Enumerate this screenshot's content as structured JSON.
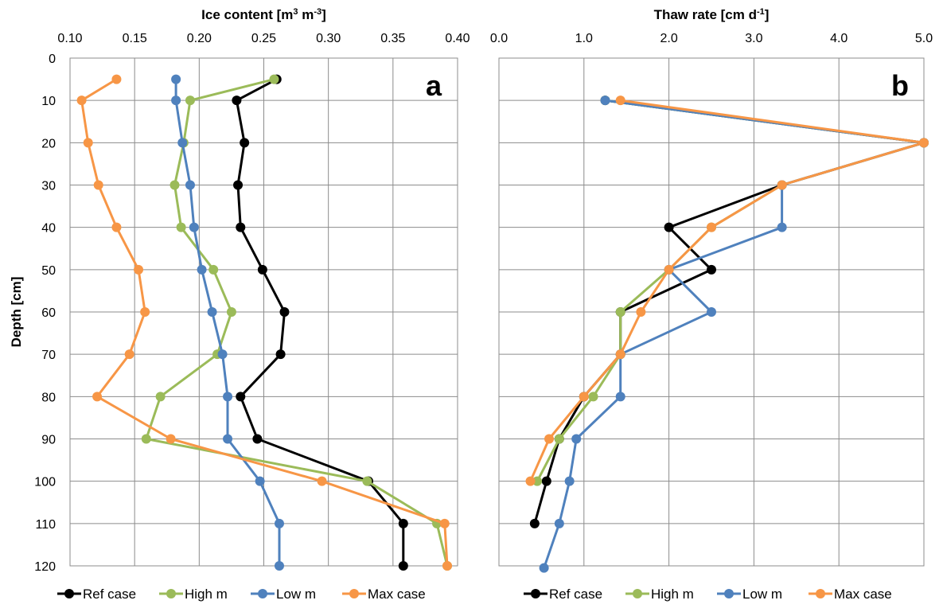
{
  "chart_data": [
    {
      "type": "line",
      "panel_label": "a",
      "xlabel_main": "Ice content [m",
      "xlabel_sup1": "3",
      "xlabel_mid": " m",
      "xlabel_sup2": "-3",
      "xlabel_end": "]",
      "ylabel": "Depth [cm]",
      "xlim": [
        0.1,
        0.4
      ],
      "ylim": [
        0,
        120
      ],
      "x_ticks": [
        "0.10",
        "0.15",
        "0.20",
        "0.25",
        "0.30",
        "0.35",
        "0.40"
      ],
      "x_tick_values": [
        0.1,
        0.15,
        0.2,
        0.25,
        0.3,
        0.35,
        0.4
      ],
      "y_ticks": [
        "0",
        "10",
        "20",
        "30",
        "40",
        "50",
        "60",
        "70",
        "80",
        "90",
        "100",
        "110",
        "120"
      ],
      "y_tick_values": [
        0,
        10,
        20,
        30,
        40,
        50,
        60,
        70,
        80,
        90,
        100,
        110,
        120
      ],
      "y_inverted": true,
      "x_axis_position": "top",
      "grid": true,
      "series": [
        {
          "name": "Ref case",
          "color": "#000000",
          "points": [
            [
              0.26,
              5
            ],
            [
              0.229,
              10
            ],
            [
              0.235,
              20
            ],
            [
              0.23,
              30
            ],
            [
              0.232,
              40
            ],
            [
              0.249,
              50
            ],
            [
              0.266,
              60
            ],
            [
              0.263,
              70
            ],
            [
              0.232,
              80
            ],
            [
              0.245,
              90
            ],
            [
              0.331,
              100
            ],
            [
              0.358,
              110
            ],
            [
              0.358,
              120
            ]
          ]
        },
        {
          "name": "High m",
          "color": "#9bbb59",
          "points": [
            [
              0.258,
              5
            ],
            [
              0.193,
              10
            ],
            [
              0.188,
              20
            ],
            [
              0.181,
              30
            ],
            [
              0.186,
              40
            ],
            [
              0.211,
              50
            ],
            [
              0.225,
              60
            ],
            [
              0.214,
              70
            ],
            [
              0.17,
              80
            ],
            [
              0.159,
              90
            ],
            [
              0.33,
              100
            ],
            [
              0.384,
              110
            ],
            [
              0.392,
              120
            ]
          ]
        },
        {
          "name": "Low m",
          "color": "#4f81bd",
          "points": [
            [
              0.182,
              5
            ],
            [
              0.182,
              10
            ],
            [
              0.187,
              20
            ],
            [
              0.193,
              30
            ],
            [
              0.196,
              40
            ],
            [
              0.202,
              50
            ],
            [
              0.21,
              60
            ],
            [
              0.218,
              70
            ],
            [
              0.222,
              80
            ],
            [
              0.222,
              90
            ],
            [
              0.247,
              100
            ],
            [
              0.262,
              110
            ],
            [
              0.262,
              120
            ]
          ]
        },
        {
          "name": "Max case",
          "color": "#f79646",
          "points": [
            [
              0.136,
              5
            ],
            [
              0.109,
              10
            ],
            [
              0.114,
              20
            ],
            [
              0.122,
              30
            ],
            [
              0.136,
              40
            ],
            [
              0.153,
              50
            ],
            [
              0.158,
              60
            ],
            [
              0.146,
              70
            ],
            [
              0.121,
              80
            ],
            [
              0.178,
              90
            ],
            [
              0.295,
              100
            ],
            [
              0.39,
              110
            ],
            [
              0.392,
              120
            ]
          ]
        }
      ]
    },
    {
      "type": "line",
      "panel_label": "b",
      "xlabel_main": "Thaw rate [cm d",
      "xlabel_sup1": "-1",
      "xlabel_end": "]",
      "xlim": [
        0,
        5
      ],
      "ylim": [
        0,
        120
      ],
      "x_ticks": [
        "0.0",
        "1.0",
        "2.0",
        "3.0",
        "4.0",
        "5.0"
      ],
      "x_tick_values": [
        0,
        1,
        2,
        3,
        4,
        5
      ],
      "y_tick_values": [
        0,
        10,
        20,
        30,
        40,
        50,
        60,
        70,
        80,
        90,
        100,
        110,
        120
      ],
      "y_inverted": true,
      "x_axis_position": "top",
      "grid": true,
      "series": [
        {
          "name": "Ref case",
          "color": "#000000",
          "points": [
            [
              1.25,
              10
            ],
            [
              5.0,
              20
            ],
            [
              3.33,
              30
            ],
            [
              2.0,
              40
            ],
            [
              2.5,
              50
            ],
            [
              1.43,
              60
            ],
            [
              1.43,
              70
            ],
            [
              1.0,
              80
            ],
            [
              0.71,
              90
            ],
            [
              0.56,
              100
            ],
            [
              0.42,
              110
            ]
          ]
        },
        {
          "name": "High m",
          "color": "#9bbb59",
          "points": [
            [
              1.25,
              10
            ],
            [
              5.0,
              20
            ],
            [
              3.33,
              30
            ],
            [
              2.5,
              40
            ],
            [
              2.0,
              50
            ],
            [
              1.43,
              60
            ],
            [
              1.43,
              70
            ],
            [
              1.11,
              80
            ],
            [
              0.71,
              90
            ],
            [
              0.45,
              100
            ]
          ]
        },
        {
          "name": "Low m",
          "color": "#4f81bd",
          "points": [
            [
              1.25,
              10
            ],
            [
              5.0,
              20
            ],
            [
              3.33,
              30
            ],
            [
              3.33,
              40
            ],
            [
              2.0,
              50
            ],
            [
              2.5,
              60
            ],
            [
              1.43,
              70
            ],
            [
              1.43,
              80
            ],
            [
              0.91,
              90
            ],
            [
              0.83,
              100
            ],
            [
              0.71,
              110
            ],
            [
              0.53,
              120.5
            ]
          ]
        },
        {
          "name": "Max case",
          "color": "#f79646",
          "points": [
            [
              1.43,
              10
            ],
            [
              5.0,
              20
            ],
            [
              3.33,
              30
            ],
            [
              2.5,
              40
            ],
            [
              2.0,
              50
            ],
            [
              1.67,
              60
            ],
            [
              1.43,
              70
            ],
            [
              1.0,
              80
            ],
            [
              0.59,
              90
            ],
            [
              0.37,
              100
            ]
          ]
        }
      ]
    }
  ]
}
